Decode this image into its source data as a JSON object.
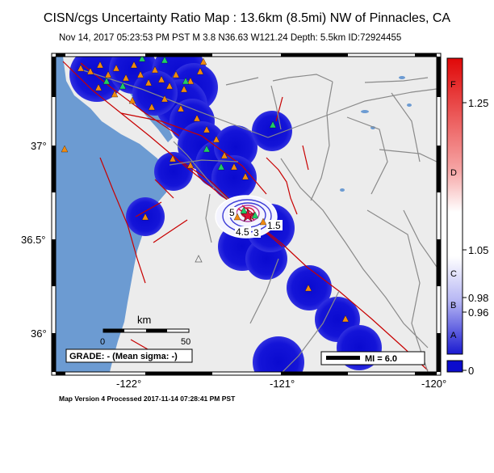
{
  "title": "CISN/cgs Uncertainty Ratio Map : 13.6km (8.5mi) NW of Pinnacles, CA",
  "subtitle": "Nov 14, 2017 05:23:53 PM PST   M 3.8   N36.63 W121.24   Depth: 5.5km   ID:72924455",
  "footer": "Map Version 4 Processed 2017-11-14 07:28:41 PM PST",
  "map": {
    "lon_labels": [
      "-122°",
      "-121°",
      "-120°"
    ],
    "lat_labels": [
      "37°",
      "36.5°",
      "36°"
    ],
    "grade": "GRADE: - (Mean sigma: -)",
    "scale_unit": "km",
    "scale_ticks": [
      "0",
      "50"
    ],
    "mi_legend": "MI = 6.0",
    "contour_labels": [
      "5",
      "4.5",
      "3",
      "1.5"
    ]
  },
  "colorbar": {
    "letters": [
      "F",
      "D",
      "C",
      "B",
      "A"
    ],
    "values": [
      "1.25",
      "1.05",
      "0.98",
      "0.96",
      "0"
    ]
  },
  "colors": {
    "ocean": "#6c9bd2",
    "land": "#ececec",
    "station_blue": "#0c0ccd",
    "fault": "#c80000",
    "road": "#8a8a8a",
    "triangle_orange": "#f08a10",
    "triangle_green": "#22cc66"
  }
}
